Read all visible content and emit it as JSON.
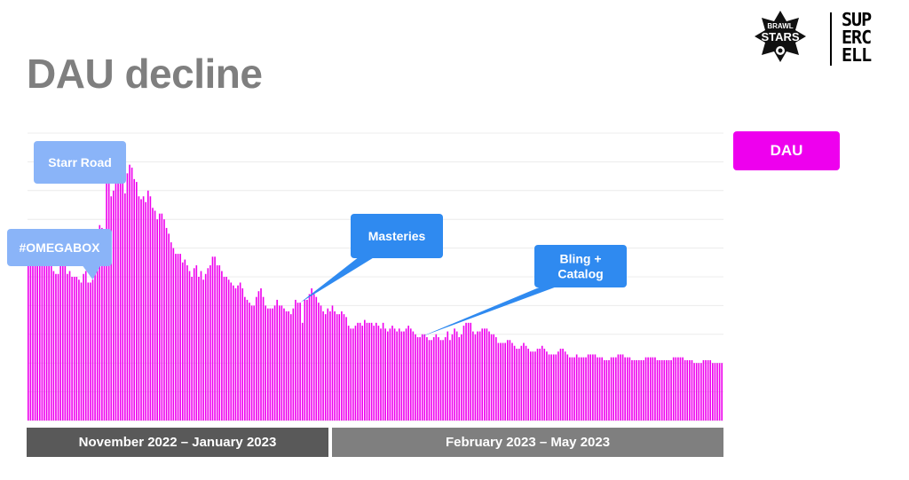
{
  "slide": {
    "title": "DAU decline"
  },
  "logos": {
    "brawl_stars": {
      "text_line1": "BRAWL",
      "text_line2": "STARS"
    },
    "supercell": {
      "lines": [
        "SUP",
        "ERC",
        "ELL"
      ]
    }
  },
  "legend": {
    "label": "DAU",
    "color": "#ee00ee"
  },
  "periods": [
    {
      "label": "November 2022 – January 2023"
    },
    {
      "label": "February 2023 – May 2023"
    }
  ],
  "colors": {
    "bar": "#ee00ee",
    "callout_light": "#8ab4f8",
    "callout_dark": "#2f8af0",
    "period_dark": "#595959",
    "period_light": "#7f7f7f"
  },
  "chart_data": {
    "type": "bar",
    "series": [
      {
        "values": [
          57,
          56,
          58,
          57,
          60,
          56,
          56,
          55,
          59,
          60,
          54,
          52,
          51,
          51,
          55,
          57,
          56,
          51,
          52,
          50,
          50,
          50,
          49,
          48,
          51,
          52,
          48,
          48,
          49,
          57,
          58,
          68,
          67,
          64,
          87,
          84,
          78,
          80,
          83,
          85,
          86,
          83,
          79,
          86,
          89,
          88,
          84,
          83,
          78,
          77,
          78,
          76,
          80,
          78,
          74,
          73,
          70,
          72,
          72,
          70,
          67,
          65,
          62,
          60,
          58,
          58,
          58,
          55,
          56,
          54,
          52,
          50,
          53,
          54,
          50,
          52,
          49,
          51,
          53,
          54,
          57,
          57,
          54,
          54,
          52,
          50,
          50,
          49,
          48,
          47,
          46,
          47,
          48,
          46,
          43,
          42,
          41,
          40,
          40,
          43,
          45,
          46,
          43,
          40,
          39,
          39,
          39,
          40,
          42,
          40,
          40,
          39,
          38,
          38,
          37,
          39,
          42,
          41,
          41,
          34,
          42,
          42,
          44,
          46,
          44,
          43,
          41,
          40,
          38,
          37,
          39,
          38,
          40,
          38,
          37,
          37,
          38,
          37,
          36,
          33,
          32,
          32,
          33,
          34,
          34,
          33,
          35,
          34,
          34,
          34,
          33,
          34,
          33,
          32,
          34,
          32,
          31,
          32,
          33,
          32,
          31,
          32,
          31,
          31,
          32,
          33,
          32,
          31,
          30,
          29,
          29,
          30,
          30,
          29,
          28,
          28,
          29,
          30,
          29,
          28,
          28,
          29,
          31,
          28,
          30,
          32,
          31,
          29,
          30,
          33,
          34,
          34,
          34,
          31,
          30,
          31,
          31,
          32,
          32,
          32,
          31,
          30,
          30,
          29,
          27,
          27,
          27,
          27,
          28,
          28,
          27,
          26,
          25,
          25,
          26,
          27,
          26,
          25,
          24,
          24,
          24,
          25,
          25,
          26,
          25,
          24,
          23,
          23,
          23,
          23,
          24,
          25,
          25,
          24,
          23,
          22,
          22,
          22,
          23,
          22,
          22,
          22,
          22,
          23,
          23,
          23,
          23,
          22,
          22,
          22,
          21,
          21,
          21,
          22,
          22,
          22,
          23,
          23,
          23,
          22,
          22,
          22,
          21,
          21,
          21,
          21,
          21,
          21,
          22,
          22,
          22,
          22,
          22,
          21,
          21,
          21,
          21,
          21,
          21,
          21,
          22,
          22,
          22,
          22,
          22,
          21,
          21,
          21,
          21,
          20,
          20,
          20,
          20,
          21,
          21,
          21,
          21,
          20,
          20,
          20,
          20,
          20
        ]
      }
    ],
    "legend": [
      "DAU"
    ],
    "annotations": [
      {
        "text": "Starr Road",
        "bar_index": 34
      },
      {
        "text": "#OMEGABOX",
        "bar_index": 28
      },
      {
        "text": "Masteries",
        "bar_index": 118
      },
      {
        "text": "Bling +\nCatalog",
        "bar_index": 170
      }
    ],
    "ylim": [
      0,
      100
    ],
    "grid": true,
    "legend_position": "right"
  }
}
